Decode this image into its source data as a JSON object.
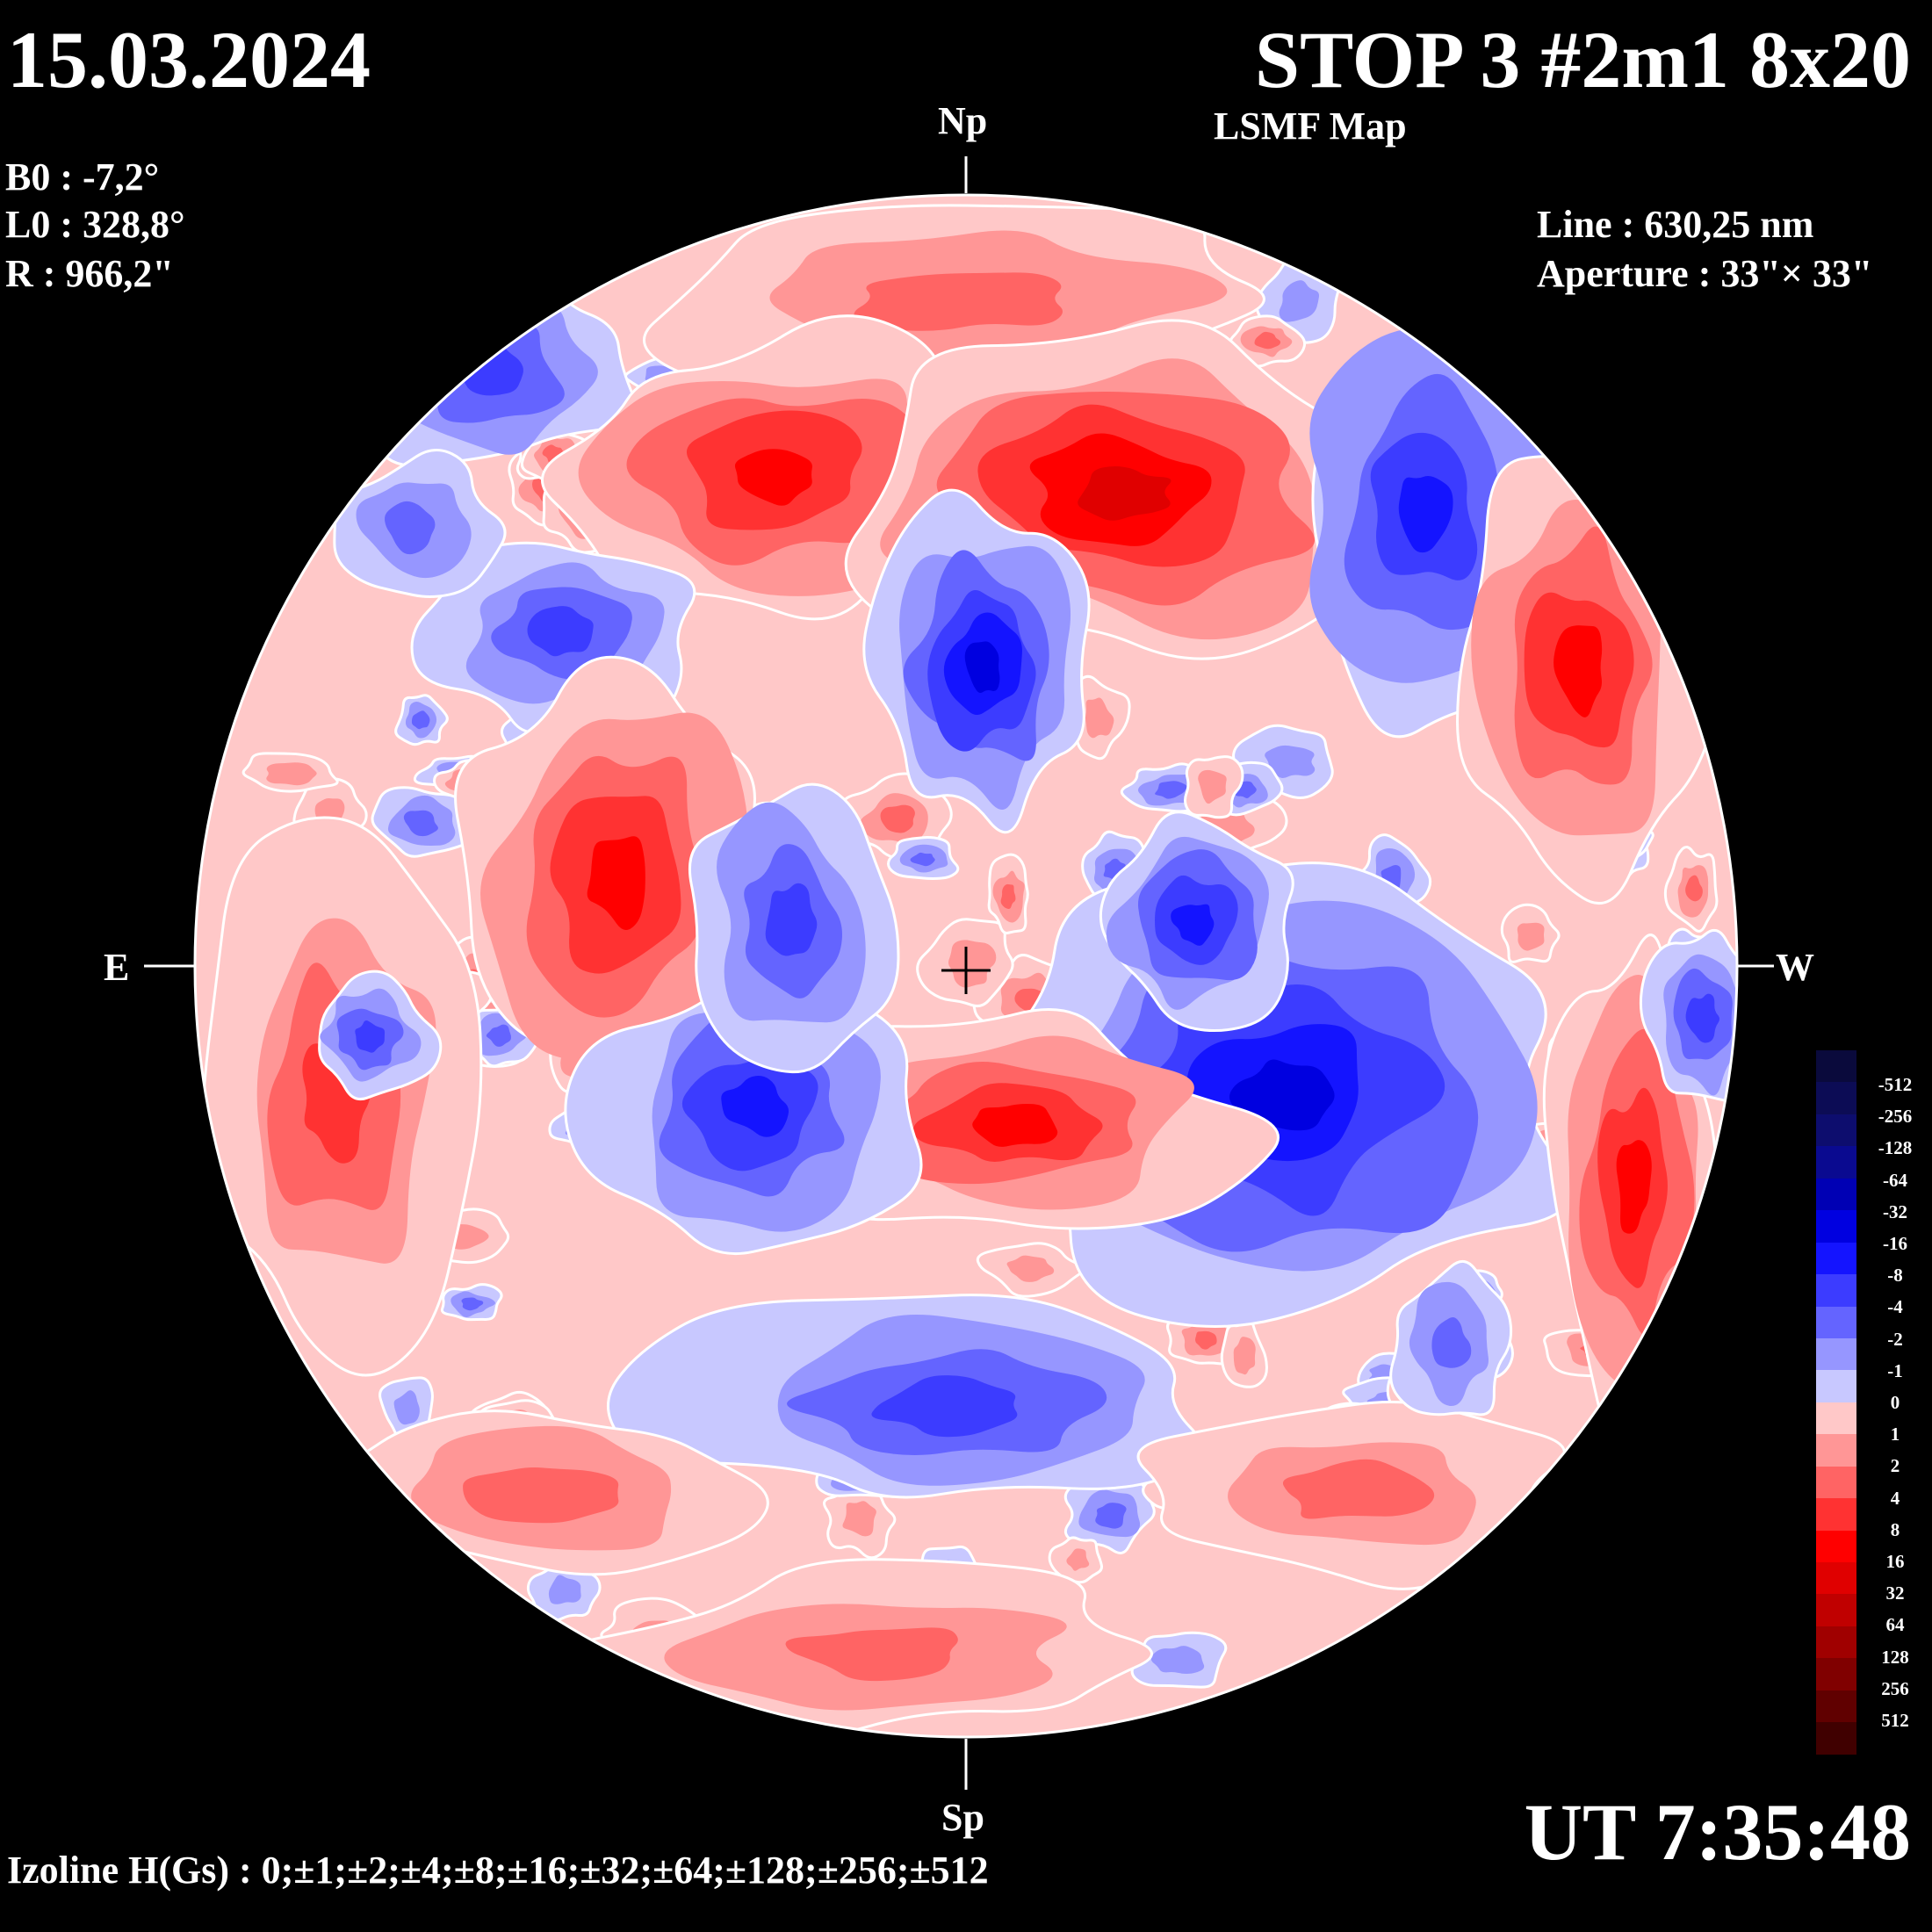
{
  "header": {
    "date": "15.03.2024",
    "title": "STOP 3 #2m1 8x20",
    "subtitle": "LSMF  Map"
  },
  "params": {
    "b0": "B0 : -7,2°",
    "l0": "L0 : 328,8°",
    "r": "R  : 966,2\""
  },
  "instrument": {
    "line": "Line :  630,25 nm",
    "aperture": "Aperture : 33\"× 33\""
  },
  "directions": {
    "north": "Np",
    "south": "Sp",
    "east": "E",
    "west": "W"
  },
  "time": "UT 7:35:48",
  "izoline": "Izoline H(Gs) : 0;±1;±2;±4;±8;±16;±32;±64;±128;±256;±512",
  "colorbar": {
    "labels": [
      "-512",
      "-256",
      "-128",
      "-64",
      "-32",
      "-16",
      "-8",
      "-4",
      "-2",
      "-1",
      "0",
      "1",
      "2",
      "4",
      "8",
      "16",
      "32",
      "64",
      "128",
      "256",
      "512"
    ],
    "colors": [
      "#0a0a3c",
      "#0c0c55",
      "#0d0d6e",
      "#0a0a90",
      "#0000b4",
      "#0000e0",
      "#1414ff",
      "#3c3cff",
      "#6464ff",
      "#9696ff",
      "#c8c8ff",
      "#ffc8c8",
      "#ff9696",
      "#ff6464",
      "#ff3232",
      "#ff0000",
      "#e00000",
      "#c00000",
      "#a00000",
      "#800000",
      "#600000",
      "#400000"
    ],
    "neg_colors": [
      "#c8c8ff",
      "#9696ff",
      "#6464ff",
      "#3c3cff",
      "#1414ff",
      "#0000e0",
      "#0000b4"
    ],
    "pos_colors": [
      "#ffc8c8",
      "#ff9696",
      "#ff6464",
      "#ff3232",
      "#ff0000",
      "#e00000",
      "#c00000"
    ]
  }
}
